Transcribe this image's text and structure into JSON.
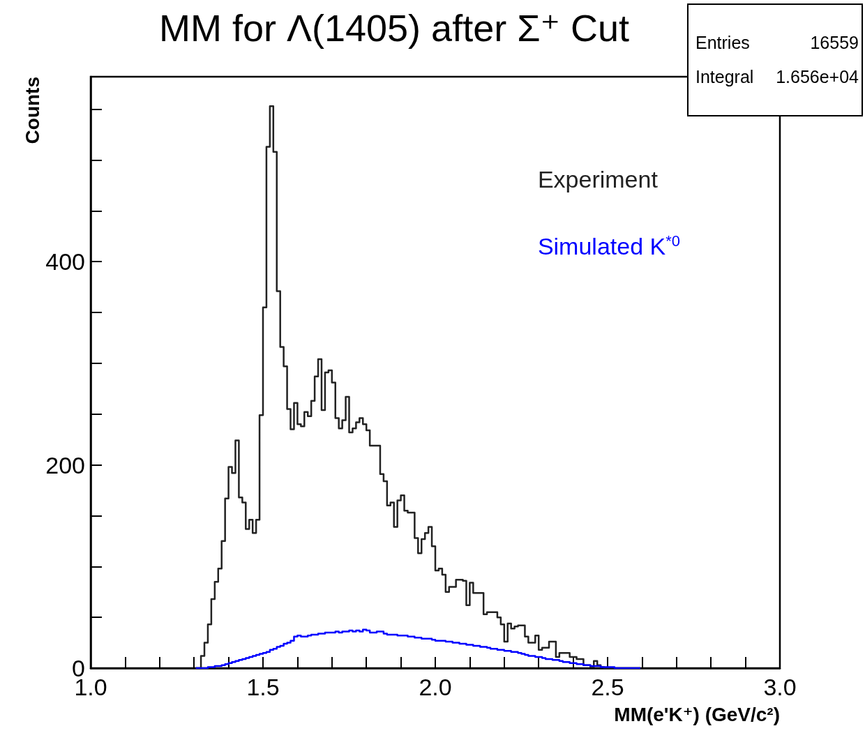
{
  "chart_data": {
    "type": "histogram",
    "title": "MM for Λ(1405) after Σ⁺ Cut",
    "xlabel": "MM(e'K⁺) (GeV/c²)",
    "ylabel": "Counts",
    "annotations": [
      "Entries",
      "16559",
      "Integral",
      "1.656e+04"
    ],
    "bins": [
      1.3,
      1.31,
      1.32,
      1.33,
      1.34,
      1.35,
      1.36,
      1.37,
      1.38,
      1.39,
      1.4,
      1.41,
      1.42,
      1.43,
      1.44,
      1.45,
      1.46,
      1.47,
      1.48,
      1.49,
      1.5,
      1.51,
      1.52,
      1.53,
      1.54,
      1.55,
      1.56,
      1.57,
      1.58,
      1.59,
      1.6,
      1.61,
      1.62,
      1.63,
      1.64,
      1.65,
      1.66,
      1.67,
      1.68,
      1.69,
      1.7,
      1.71,
      1.72,
      1.73,
      1.74,
      1.75,
      1.76,
      1.77,
      1.78,
      1.79,
      1.8,
      1.81,
      1.82,
      1.83,
      1.84,
      1.85,
      1.86,
      1.87,
      1.88,
      1.89,
      1.9,
      1.91,
      1.92,
      1.93,
      1.94,
      1.95,
      1.96,
      1.97,
      1.98,
      1.99,
      2.0,
      2.01,
      2.02,
      2.03,
      2.04,
      2.05,
      2.06,
      2.07,
      2.08,
      2.09,
      2.1,
      2.11,
      2.12,
      2.13,
      2.14,
      2.15,
      2.16,
      2.17,
      2.18,
      2.19,
      2.2,
      2.21,
      2.22,
      2.23,
      2.24,
      2.25,
      2.26,
      2.27,
      2.28,
      2.29,
      2.3,
      2.31,
      2.32,
      2.33,
      2.34,
      2.35,
      2.36,
      2.37,
      2.38,
      2.39,
      2.4,
      2.41,
      2.42,
      2.43,
      2.44,
      2.45,
      2.46,
      2.47,
      2.48,
      2.49,
      2.5,
      2.51,
      2.52,
      2.53,
      2.54,
      2.55,
      2.56,
      2.57,
      2.58,
      2.59,
      2.6
    ],
    "series": [
      {
        "name": "Experiment",
        "color": "#222222",
        "values": [
          0,
          0,
          12,
          25,
          43,
          68,
          85,
          98,
          125,
          167,
          198,
          192,
          224,
          168,
          163,
          137,
          146,
          133,
          146,
          249,
          355,
          513,
          553,
          508,
          371,
          316,
          297,
          255,
          235,
          261,
          240,
          238,
          252,
          248,
          263,
          287,
          304,
          254,
          291,
          293,
          281,
          246,
          236,
          244,
          267,
          232,
          236,
          242,
          246,
          240,
          234,
          219,
          219,
          219,
          191,
          184,
          160,
          163,
          139,
          165,
          170,
          155,
          153,
          153,
          128,
          113,
          127,
          133,
          139,
          120,
          96,
          98,
          92,
          75,
          80,
          80,
          87,
          87,
          86,
          62,
          84,
          74,
          74,
          74,
          53,
          55,
          55,
          55,
          50,
          43,
          26,
          44,
          39,
          41,
          42,
          42,
          31,
          25,
          25,
          32,
          18,
          20,
          20,
          26,
          26,
          11,
          15,
          15,
          15,
          11,
          11,
          9,
          9,
          3,
          3,
          1,
          7,
          3,
          1,
          0,
          0,
          0,
          0,
          0,
          0,
          0,
          0,
          0,
          0,
          0
        ]
      },
      {
        "name": "Simulated K$^{*0}$",
        "color": "#0000ff",
        "values": [
          0,
          0,
          0,
          0,
          1,
          1,
          2,
          2,
          3,
          4,
          5,
          6,
          7,
          8,
          9,
          10,
          11,
          12,
          13,
          14,
          15,
          16,
          18,
          19,
          21,
          22,
          24,
          25,
          27,
          31,
          32,
          31,
          31,
          32,
          33,
          33,
          34,
          34,
          35,
          35,
          35,
          36,
          35,
          36,
          36,
          37,
          36,
          37,
          36,
          38,
          37,
          35,
          35,
          36,
          36,
          34,
          33,
          33,
          33,
          32,
          32,
          32,
          31,
          31,
          30,
          30,
          29,
          29,
          29,
          28,
          27,
          27,
          27,
          26,
          26,
          25,
          25,
          24,
          24,
          23,
          23,
          22,
          22,
          21,
          21,
          20,
          19,
          19,
          18,
          18,
          17,
          17,
          16,
          16,
          15,
          14,
          13,
          12,
          12,
          11,
          11,
          10,
          9,
          9,
          8,
          8,
          7,
          6,
          6,
          5,
          5,
          4,
          4,
          3,
          3,
          2,
          2,
          2,
          1,
          1,
          1,
          1,
          0,
          0,
          0,
          0,
          0,
          0,
          0,
          0
        ]
      }
    ],
    "xlim": [
      1.0,
      3.0
    ],
    "xticks": [
      {
        "value": 1.0,
        "label": "1.0"
      },
      {
        "value": 1.1,
        "label": null
      },
      {
        "value": 1.2,
        "label": null
      },
      {
        "value": 1.3,
        "label": null
      },
      {
        "value": 1.4,
        "label": null
      },
      {
        "value": 1.5,
        "label": "1.5"
      },
      {
        "value": 1.6,
        "label": null
      },
      {
        "value": 1.7,
        "label": null
      },
      {
        "value": 1.8,
        "label": null
      },
      {
        "value": 1.9,
        "label": null
      },
      {
        "value": 2.0,
        "label": "2.0"
      },
      {
        "value": 2.1,
        "label": null
      },
      {
        "value": 2.2,
        "label": null
      },
      {
        "value": 2.3,
        "label": null
      },
      {
        "value": 2.4,
        "label": null
      },
      {
        "value": 2.5,
        "label": "2.5"
      },
      {
        "value": 2.6,
        "label": null
      },
      {
        "value": 2.7,
        "label": null
      },
      {
        "value": 2.8,
        "label": null
      },
      {
        "value": 2.9,
        "label": null
      },
      {
        "value": 3.0,
        "label": "3.0"
      }
    ],
    "ylim": [
      0,
      582
    ],
    "yticks": [
      0,
      {
        "value": 50,
        "label": null
      },
      {
        "value": 100,
        "label": null
      },
      {
        "value": 150,
        "label": null
      },
      200,
      {
        "value": 250,
        "label": null
      },
      {
        "value": 300,
        "label": null
      },
      {
        "value": 350,
        "label": null
      },
      400,
      {
        "value": 450,
        "label": null
      },
      {
        "value": 500,
        "label": null
      },
      {
        "value": 550,
        "label": null
      }
    ],
    "grid": false,
    "legend": "top right"
  }
}
